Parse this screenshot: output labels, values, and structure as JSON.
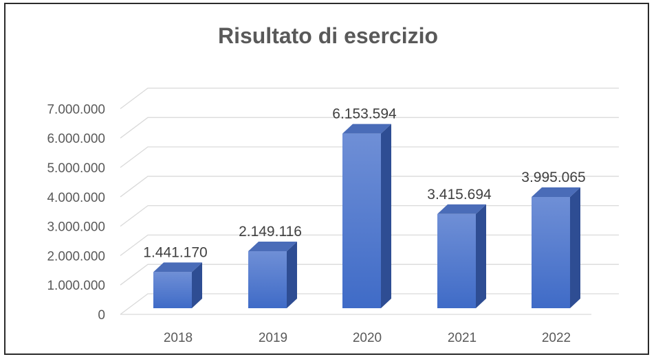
{
  "chart_data": {
    "type": "bar",
    "title": "Risultato di esercizio",
    "categories": [
      "2018",
      "2019",
      "2020",
      "2021",
      "2022"
    ],
    "values": [
      1441170,
      2149116,
      6153594,
      3415694,
      3995065
    ],
    "value_labels": [
      "1.441.170",
      "2.149.116",
      "6.153.594",
      "3.415.694",
      "3.995.065"
    ],
    "yticks": [
      0,
      1000000,
      2000000,
      3000000,
      4000000,
      5000000,
      6000000,
      7000000
    ],
    "ytick_labels": [
      "0",
      "1.000.000",
      "2.000.000",
      "3.000.000",
      "4.000.000",
      "5.000.000",
      "6.000.000",
      "7.000.000"
    ],
    "ylim": [
      0,
      7000000
    ],
    "xlabel": "",
    "ylabel": "",
    "grid": true,
    "legend": "none",
    "style": "3d-column",
    "colors": {
      "bar_front_top": "#6f8fd6",
      "bar_front_bottom": "#3f6bc7",
      "bar_side": "#2e4d93",
      "bar_top": "#4a6cb8",
      "gridline": "#d9d9d9"
    }
  }
}
